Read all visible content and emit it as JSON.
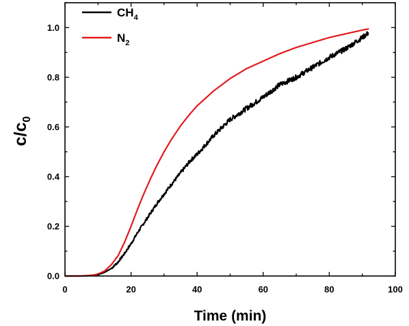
{
  "chart_data": {
    "type": "line",
    "title": "",
    "xlabel": "Time (min)",
    "ylabel": {
      "base": "c/c",
      "sub": "0"
    },
    "xlim": [
      0,
      100
    ],
    "ylim": [
      0.0,
      1.1
    ],
    "xticks": [
      "0",
      "20",
      "40",
      "60",
      "80",
      "100"
    ],
    "yticks": [
      "0.0",
      "0.2",
      "0.4",
      "0.6",
      "0.8",
      "1.0"
    ],
    "grid": false,
    "legend": {
      "position": "top-left",
      "entries": [
        {
          "base": "CH",
          "sub": "4"
        },
        {
          "base": "N",
          "sub": "2"
        }
      ]
    },
    "series": [
      {
        "name": "CH4",
        "color": "#000000",
        "noisy": true,
        "x": [
          0,
          5,
          10,
          12,
          14,
          16,
          18,
          20,
          22,
          24,
          26,
          28,
          30,
          32,
          35,
          38,
          40,
          45,
          50,
          55,
          60,
          65,
          70,
          75,
          80,
          85,
          90,
          92
        ],
        "y": [
          0.0,
          0.0,
          0.005,
          0.015,
          0.03,
          0.055,
          0.09,
          0.13,
          0.175,
          0.215,
          0.255,
          0.295,
          0.33,
          0.365,
          0.415,
          0.465,
          0.49,
          0.565,
          0.63,
          0.675,
          0.72,
          0.77,
          0.8,
          0.84,
          0.88,
          0.915,
          0.96,
          0.98
        ]
      },
      {
        "name": "N2",
        "color": "#e31a1c",
        "noisy": false,
        "x": [
          0,
          5,
          8,
          10,
          12,
          14,
          16,
          18,
          20,
          22,
          24,
          26,
          28,
          30,
          32,
          35,
          38,
          40,
          45,
          50,
          55,
          60,
          65,
          70,
          75,
          80,
          85,
          90,
          92
        ],
        "y": [
          0.0,
          0.0,
          0.002,
          0.008,
          0.02,
          0.045,
          0.08,
          0.135,
          0.2,
          0.27,
          0.335,
          0.395,
          0.45,
          0.5,
          0.545,
          0.605,
          0.655,
          0.685,
          0.745,
          0.795,
          0.835,
          0.865,
          0.895,
          0.92,
          0.94,
          0.96,
          0.975,
          0.99,
          0.995
        ]
      }
    ]
  }
}
